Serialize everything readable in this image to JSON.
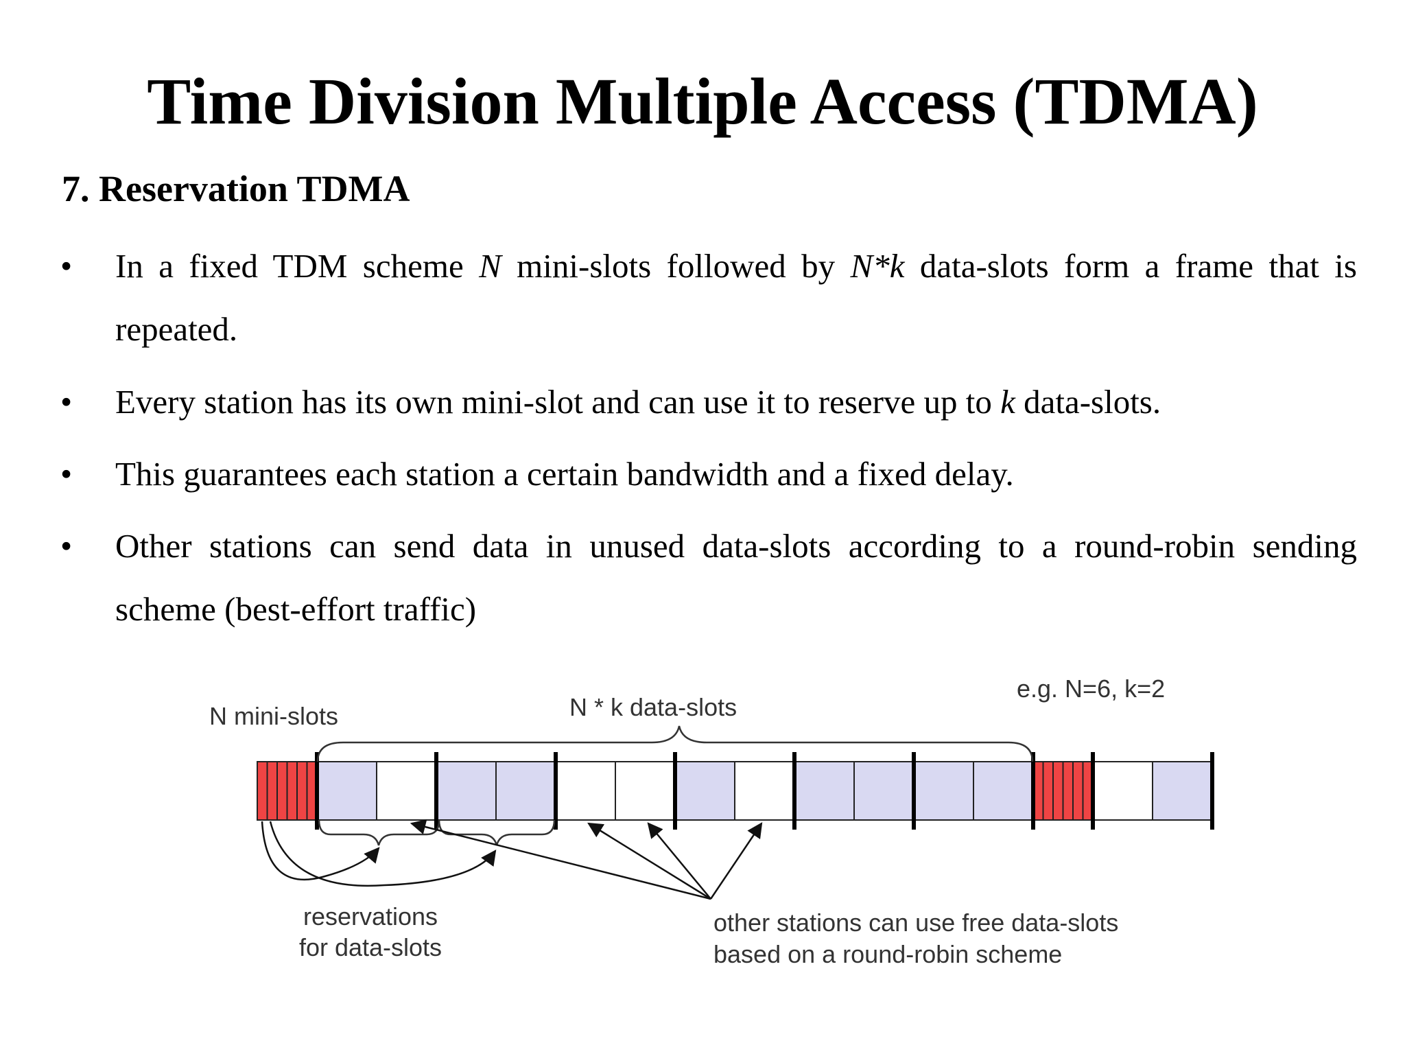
{
  "title": "Time Division Multiple Access (TDMA)",
  "section": "7. Reservation TDMA",
  "bullets": [
    {
      "parts": [
        {
          "t": "In a fixed TDM scheme ",
          "i": false
        },
        {
          "t": "N",
          "i": true
        },
        {
          "t": " mini-slots followed by ",
          "i": false
        },
        {
          "t": "N*k",
          "i": true
        },
        {
          "t": " data-slots form a frame that is repeated.",
          "i": false
        }
      ]
    },
    {
      "parts": [
        {
          "t": "Every station has its own mini-slot and can use it to reserve up to ",
          "i": false
        },
        {
          "t": "k",
          "i": true
        },
        {
          "t": " data-slots.",
          "i": false
        }
      ]
    },
    {
      "parts": [
        {
          "t": "This guarantees each station a certain bandwidth and a fixed delay.",
          "i": false
        }
      ]
    },
    {
      "parts": [
        {
          "t": "Other stations can send data in unused data-slots according to a round-robin sending scheme (best-effort traffic)",
          "i": false
        }
      ]
    }
  ],
  "diagram": {
    "labels": {
      "mini_slots": "N mini-slots",
      "data_slots": "N * k data-slots",
      "example": "e.g. N=6, k=2",
      "reservations_line1": "reservations",
      "reservations_line2": "for data-slots",
      "others_line1": "other stations can use free data-slots",
      "others_line2": "based on a round-robin scheme"
    },
    "colors": {
      "mini_slot": "#ef4444",
      "reserved_slot": "#d9d9f2",
      "free_slot": "#ffffff"
    },
    "frame_1": {
      "mini_slot_count": 6,
      "data_slots": [
        "reserved",
        "free",
        "reserved",
        "reserved",
        "free",
        "free",
        "reserved",
        "free",
        "reserved",
        "reserved",
        "reserved",
        "reserved"
      ]
    },
    "frame_2": {
      "mini_slot_count": 6,
      "data_slots": [
        "free",
        "reserved"
      ]
    }
  }
}
